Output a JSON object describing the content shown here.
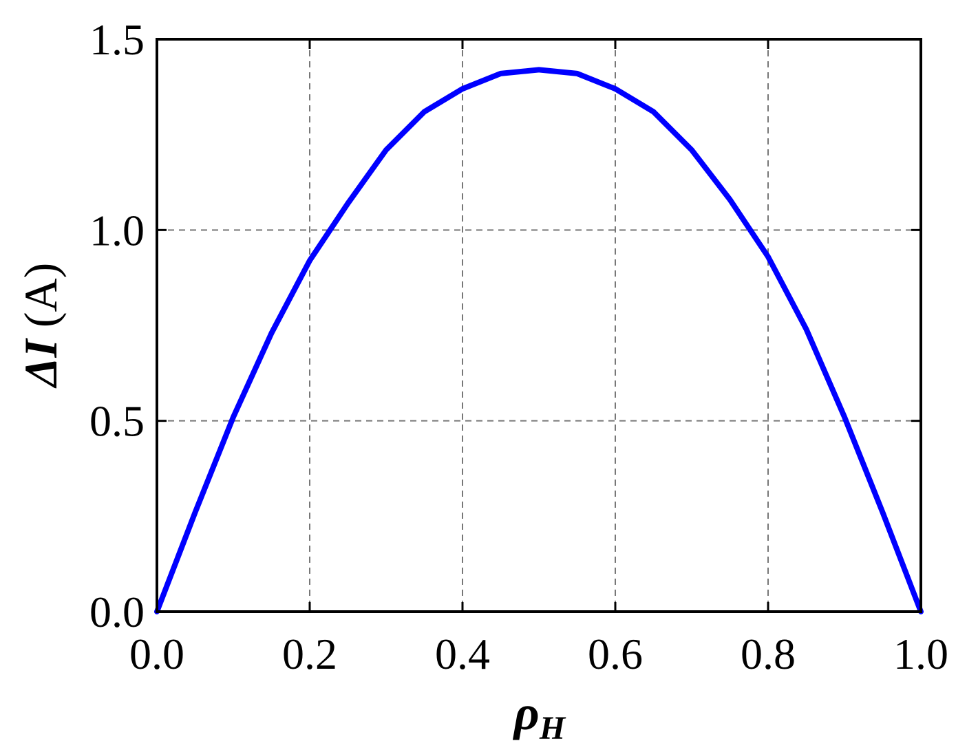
{
  "chart_data": {
    "type": "line",
    "xlabel": {
      "main": "ρ",
      "sub": "H"
    },
    "ylabel": {
      "main": "ΔI",
      "unit": "(A)"
    },
    "xlim": [
      0.0,
      1.0
    ],
    "ylim": [
      0.0,
      1.5
    ],
    "xticks": [
      "0.0",
      "0.2",
      "0.4",
      "0.6",
      "0.8",
      "1.0"
    ],
    "yticks": [
      "0.0",
      "0.5",
      "1.0",
      "1.5"
    ],
    "grid": true,
    "grid_style": "dashed",
    "line_color": "#0000ff",
    "series": [
      {
        "x": [
          0.0,
          0.05,
          0.1,
          0.15,
          0.2,
          0.25,
          0.3,
          0.35,
          0.4,
          0.45,
          0.5,
          0.55,
          0.6,
          0.65,
          0.7,
          0.75,
          0.8,
          0.85,
          0.9,
          0.95,
          1.0
        ],
        "y": [
          0.0,
          0.26,
          0.51,
          0.73,
          0.92,
          1.07,
          1.21,
          1.31,
          1.37,
          1.41,
          1.42,
          1.41,
          1.37,
          1.31,
          1.21,
          1.08,
          0.93,
          0.74,
          0.51,
          0.26,
          0.0
        ]
      }
    ]
  }
}
